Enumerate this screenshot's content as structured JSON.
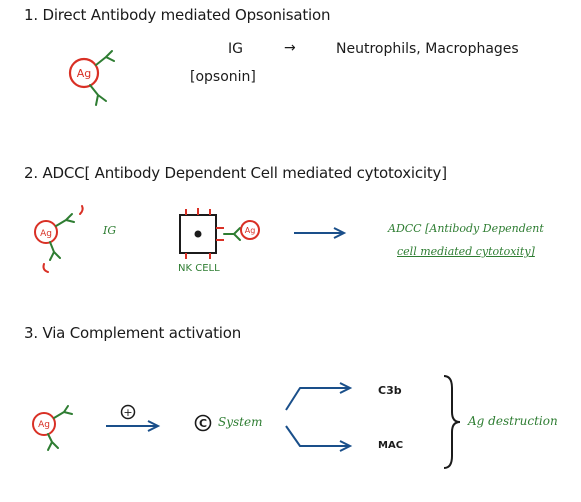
{
  "colors": {
    "antigen_red": "#d93025",
    "antibody_green": "#2e7d32",
    "arrow_blue": "#1a4f8a",
    "text": "#1b1b1b"
  },
  "section1": {
    "heading": "1. Direct Antibody mediated Opsonisation",
    "antigen_label": "Ag",
    "ig_label": "IG",
    "opsonin_label": "[opsonin]",
    "arrow_glyph": "→",
    "target_cells": "Neutrophils, Macrophages"
  },
  "section2": {
    "heading": "2. ADCC[ Antibody Dependent Cell mediated cytotoxicity]",
    "antigen_label": "Ag",
    "ig_label": "IG",
    "nk_cell_label": "NK CELL",
    "bound_antigen_label": "Ag",
    "result_line1": "ADCC [Antibody Dependent",
    "result_line2": "cell mediated cytotoxity]"
  },
  "section3": {
    "heading": "3. Via Complement activation",
    "antigen_label": "Ag",
    "plus_symbol": "+",
    "complement_symbol": "C",
    "system_label": "System",
    "c3b_label": "C3b",
    "mac_label": "MAC",
    "outcome": "Ag destruction"
  },
  "icons": [
    "antigen-antibody-icon",
    "arrow-right-icon",
    "nk-cell-icon",
    "brace-icon",
    "circled-plus-icon",
    "circled-c-icon"
  ]
}
